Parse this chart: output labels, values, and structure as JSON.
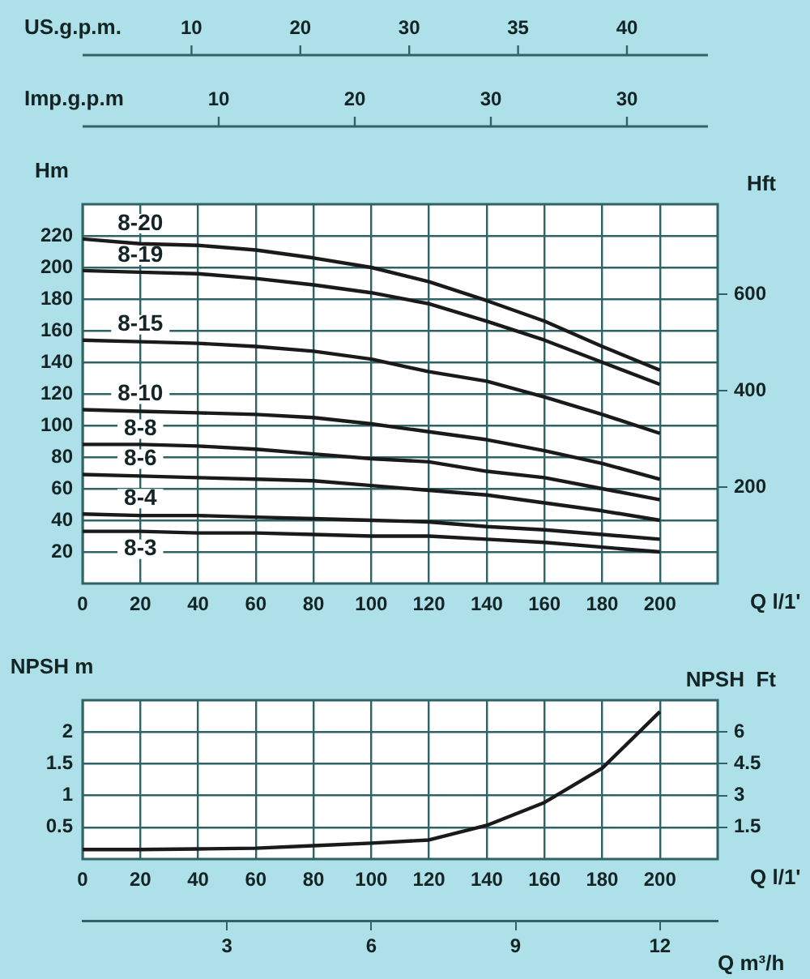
{
  "chart_data": [
    {
      "type": "other",
      "xlabel": "US.g.p.m.",
      "annotations": [
        "10",
        "20",
        "30",
        "35",
        "40"
      ]
    },
    {
      "type": "other",
      "xlabel": "Imp.g.p.m",
      "annotations": [
        "10",
        "20",
        "30",
        "30"
      ]
    },
    {
      "type": "line",
      "xlabel": "Q l/1'",
      "ylabel": "Hm",
      "y2label": "Hft",
      "x": [
        0,
        20,
        40,
        60,
        80,
        100,
        120,
        140,
        160,
        180,
        200
      ],
      "series": [
        {
          "name": "8-20",
          "color": "#1a1a1a",
          "values": [
            218,
            215,
            214,
            211,
            206,
            200,
            191,
            179,
            166,
            150,
            135
          ]
        },
        {
          "name": "8-19",
          "color": "#1a1a1a",
          "values": [
            198,
            197,
            196,
            193,
            189,
            184,
            177,
            166,
            154,
            140,
            126
          ]
        },
        {
          "name": "8-15",
          "color": "#1a1a1a",
          "values": [
            154,
            153,
            152,
            150,
            147,
            142,
            134,
            128,
            118,
            107,
            95
          ]
        },
        {
          "name": "8-10",
          "color": "#1a1a1a",
          "values": [
            110,
            109,
            108,
            107,
            105,
            101,
            96,
            91,
            84,
            76,
            66
          ]
        },
        {
          "name": "8-8",
          "color": "#1a1a1a",
          "values": [
            88,
            88,
            87,
            85,
            82,
            79,
            77,
            71,
            67,
            60,
            53
          ]
        },
        {
          "name": "8-6",
          "color": "#1a1a1a",
          "values": [
            69,
            68,
            67,
            66,
            65,
            62,
            59,
            56,
            51,
            46,
            40
          ]
        },
        {
          "name": "8-4",
          "color": "#1a1a1a",
          "values": [
            44,
            43,
            43,
            42,
            41,
            40,
            39,
            36,
            34,
            31,
            28
          ]
        },
        {
          "name": "8-3",
          "color": "#1a1a1a",
          "values": [
            33,
            33,
            32,
            32,
            31,
            30,
            30,
            28,
            26,
            23,
            20
          ]
        }
      ],
      "xlim": [
        0,
        220
      ],
      "xticks": [
        0,
        20,
        40,
        60,
        80,
        100,
        120,
        140,
        160,
        180,
        200
      ],
      "ylim": [
        0,
        240
      ],
      "yticks": [
        20,
        40,
        60,
        80,
        100,
        120,
        140,
        160,
        180,
        200,
        220
      ],
      "y2lim": [
        0,
        787
      ],
      "y2ticks": [
        200,
        400,
        600
      ],
      "grid": true,
      "legend": false
    },
    {
      "type": "line",
      "xlabel": "Q l/1'",
      "ylabel": "NPSH m",
      "y2label": "NPSH  Ft",
      "x2label": "Q m³/h",
      "x": [
        0,
        20,
        40,
        60,
        80,
        100,
        120,
        140,
        160,
        180,
        200
      ],
      "series": [
        {
          "color": "#1a1a1a",
          "values": [
            0.15,
            0.15,
            0.16,
            0.17,
            0.21,
            0.25,
            0.3,
            0.53,
            0.89,
            1.43,
            2.32
          ]
        }
      ],
      "xlim": [
        0,
        220
      ],
      "xticks": [
        0,
        20,
        40,
        60,
        80,
        100,
        120,
        140,
        160,
        180,
        200
      ],
      "ylim": [
        0,
        2.5
      ],
      "yticks": [
        0.5,
        1,
        1.5,
        2
      ],
      "y2lim": [
        0,
        7.5
      ],
      "y2ticks": [
        1.5,
        3,
        4.5,
        6
      ],
      "x2lim": [
        0,
        13.2
      ],
      "x2ticks": [
        3,
        6,
        9,
        12
      ],
      "grid": true,
      "legend": false
    }
  ]
}
